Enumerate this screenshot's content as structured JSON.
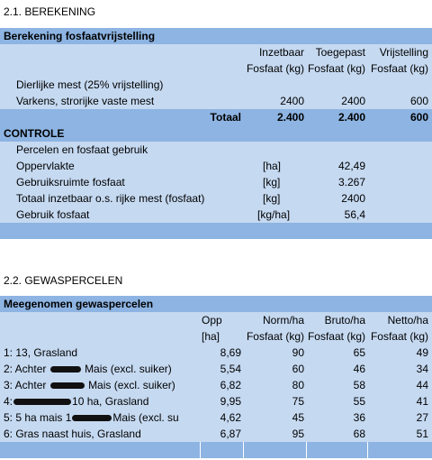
{
  "section1": {
    "heading": "2.1. BEREKENING",
    "table_title": "Berekening fosfaatvrijstelling",
    "headers": {
      "col1_line1": "Inzetbaar",
      "col1_line2": "Fosfaat (kg)",
      "col2_line1": "Toegepast",
      "col2_line2": "Fosfaat (kg)",
      "col3_line1": "Vrijstelling",
      "col3_line2": "Fosfaat (kg)"
    },
    "group_label": "Dierlijke mest (25% vrijstelling)",
    "rows": [
      {
        "label": "Varkens, strorijke vaste mest",
        "inzetbaar": "2400",
        "toegepast": "2400",
        "vrijstelling": "600"
      }
    ],
    "total": {
      "label": "Totaal",
      "inzetbaar": "2.400",
      "toegepast": "2.400",
      "vrijstelling": "600"
    }
  },
  "controle": {
    "title": "CONTROLE",
    "subtitle": "Percelen en fosfaat gebruik",
    "rows": [
      {
        "label": "Oppervlakte",
        "unit": "[ha]",
        "value": "42,49"
      },
      {
        "label": "Gebruiksruimte fosfaat",
        "unit": "[kg]",
        "value": "3.267"
      },
      {
        "label": "Totaal inzetbaar o.s. rijke mest (fosfaat)",
        "unit": "[kg]",
        "value": "2400"
      },
      {
        "label": "Gebruik fosfaat",
        "unit": "[kg/ha]",
        "value": "56,4"
      }
    ]
  },
  "section2": {
    "heading": "2.2. GEWASPERCELEN",
    "table_title": "Meegenomen gewaspercelen",
    "headers": {
      "opp_line1": "Opp",
      "opp_line2": "[ha]",
      "norm_line1": "Norm/ha",
      "norm_line2": "Fosfaat (kg)",
      "bruto_line1": "Bruto/ha",
      "bruto_line2": "Fosfaat (kg)",
      "netto_line1": "Netto/ha",
      "netto_line2": "Fosfaat (kg)"
    },
    "rows": [
      {
        "prefix": "1: 13, Grasland",
        "suffix": "",
        "opp": "8,69",
        "norm": "90",
        "bruto": "65",
        "netto": "49"
      },
      {
        "prefix": "2: Achter",
        "suffix": "Mais (excl. suiker)",
        "opp": "5,54",
        "norm": "60",
        "bruto": "46",
        "netto": "34"
      },
      {
        "prefix": "3: Achter",
        "suffix": "Mais (excl. suiker)",
        "opp": "6,82",
        "norm": "80",
        "bruto": "58",
        "netto": "44"
      },
      {
        "prefix": "4:",
        "suffix": "10 ha, Grasland",
        "opp": "9,95",
        "norm": "75",
        "bruto": "55",
        "netto": "41"
      },
      {
        "prefix": "5: 5 ha mais 1",
        "suffix": "Mais (excl. su",
        "opp": "4,62",
        "norm": "45",
        "bruto": "36",
        "netto": "27"
      },
      {
        "prefix": "6: Gras naast huis, Grasland",
        "suffix": "",
        "opp": "6,87",
        "norm": "95",
        "bruto": "68",
        "netto": "51"
      }
    ]
  }
}
